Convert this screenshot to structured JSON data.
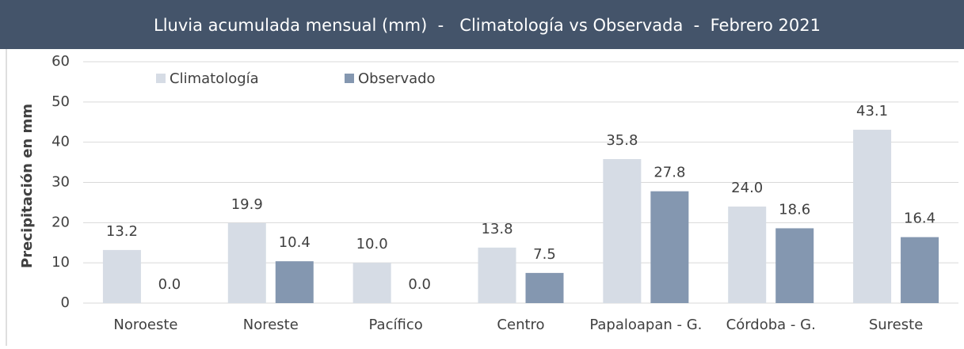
{
  "chart_data": {
    "type": "bar",
    "title": "Lluvia acumulada mensual (mm)  -   Climatología vs Observada  -  Febrero 2021",
    "y_label": "Precipitación en mm",
    "categories": [
      "Noroeste",
      "Noreste",
      "Pacífico",
      "Centro",
      "Papaloapan - G.",
      "Córdoba - G.",
      "Sureste"
    ],
    "series": [
      {
        "name": "Climatología",
        "color": "#d6dce5",
        "values": [
          13.2,
          19.9,
          10.0,
          13.8,
          35.8,
          24.0,
          43.1
        ],
        "value_labels": [
          "13.2",
          "19.9",
          "10.0",
          "13.8",
          "35.8",
          "24.0",
          "43.1"
        ]
      },
      {
        "name": "Observado",
        "color": "#8497b0",
        "values": [
          0.0,
          10.4,
          0.0,
          7.5,
          27.8,
          18.6,
          16.4
        ],
        "value_labels": [
          "0.0",
          "10.4",
          "0.0",
          "7.5",
          "27.8",
          "18.6",
          "16.4"
        ]
      }
    ],
    "ylim": [
      0,
      60
    ],
    "yticks": [
      0,
      10,
      20,
      30,
      40,
      50,
      60
    ],
    "grid": true,
    "legend": "top-left"
  }
}
